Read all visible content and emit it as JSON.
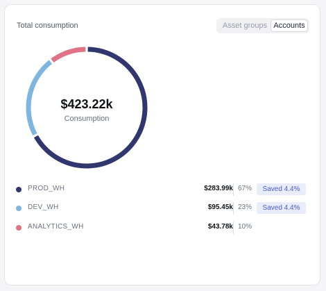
{
  "header": {
    "title": "Total consumption",
    "toggle": {
      "options": [
        "Asset groups",
        "Accounts"
      ],
      "selected": "Accounts"
    }
  },
  "summary": {
    "total": "$423.22k",
    "label": "Consumption"
  },
  "accounts": [
    {
      "name": "PROD_WH",
      "amount": "$283.99k",
      "percent": "67%",
      "saved": "Saved 4.4%",
      "color": "#32366e",
      "share": 67.1
    },
    {
      "name": "DEV_WH",
      "amount": "$95.45k",
      "percent": "23%",
      "saved": "Saved 4.4%",
      "color": "#7fb6e0",
      "share": 22.55
    },
    {
      "name": "ANALYTICS_WH",
      "amount": "$43.78k",
      "percent": "10%",
      "saved": "",
      "color": "#e07386",
      "share": 10.35
    }
  ],
  "colors": {
    "accent": "#4b5bd4",
    "badge_bg": "#e9edfb"
  }
}
